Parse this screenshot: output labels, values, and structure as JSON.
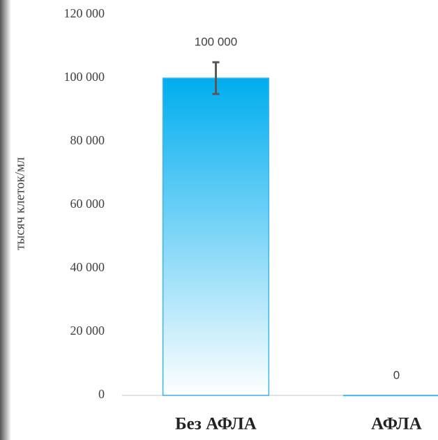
{
  "chart_data": {
    "type": "bar",
    "y_label": "тысяч клеток/мл",
    "categories": [
      "Без АФЛА",
      "АФЛА"
    ],
    "values": [
      100000,
      0
    ],
    "value_labels": [
      "100 000",
      "0"
    ],
    "errors": [
      5000,
      null
    ],
    "color": "#00adef",
    "ylim": [
      0,
      120000
    ],
    "yticks": [
      {
        "value": 0,
        "label": "0"
      },
      {
        "value": 20000,
        "label": "20 000"
      },
      {
        "value": 40000,
        "label": "40 000"
      },
      {
        "value": 60000,
        "label": "60 000"
      },
      {
        "value": 80000,
        "label": "80 000"
      },
      {
        "value": 100000,
        "label": "100 000"
      },
      {
        "value": 120000,
        "label": "120 000"
      }
    ]
  }
}
